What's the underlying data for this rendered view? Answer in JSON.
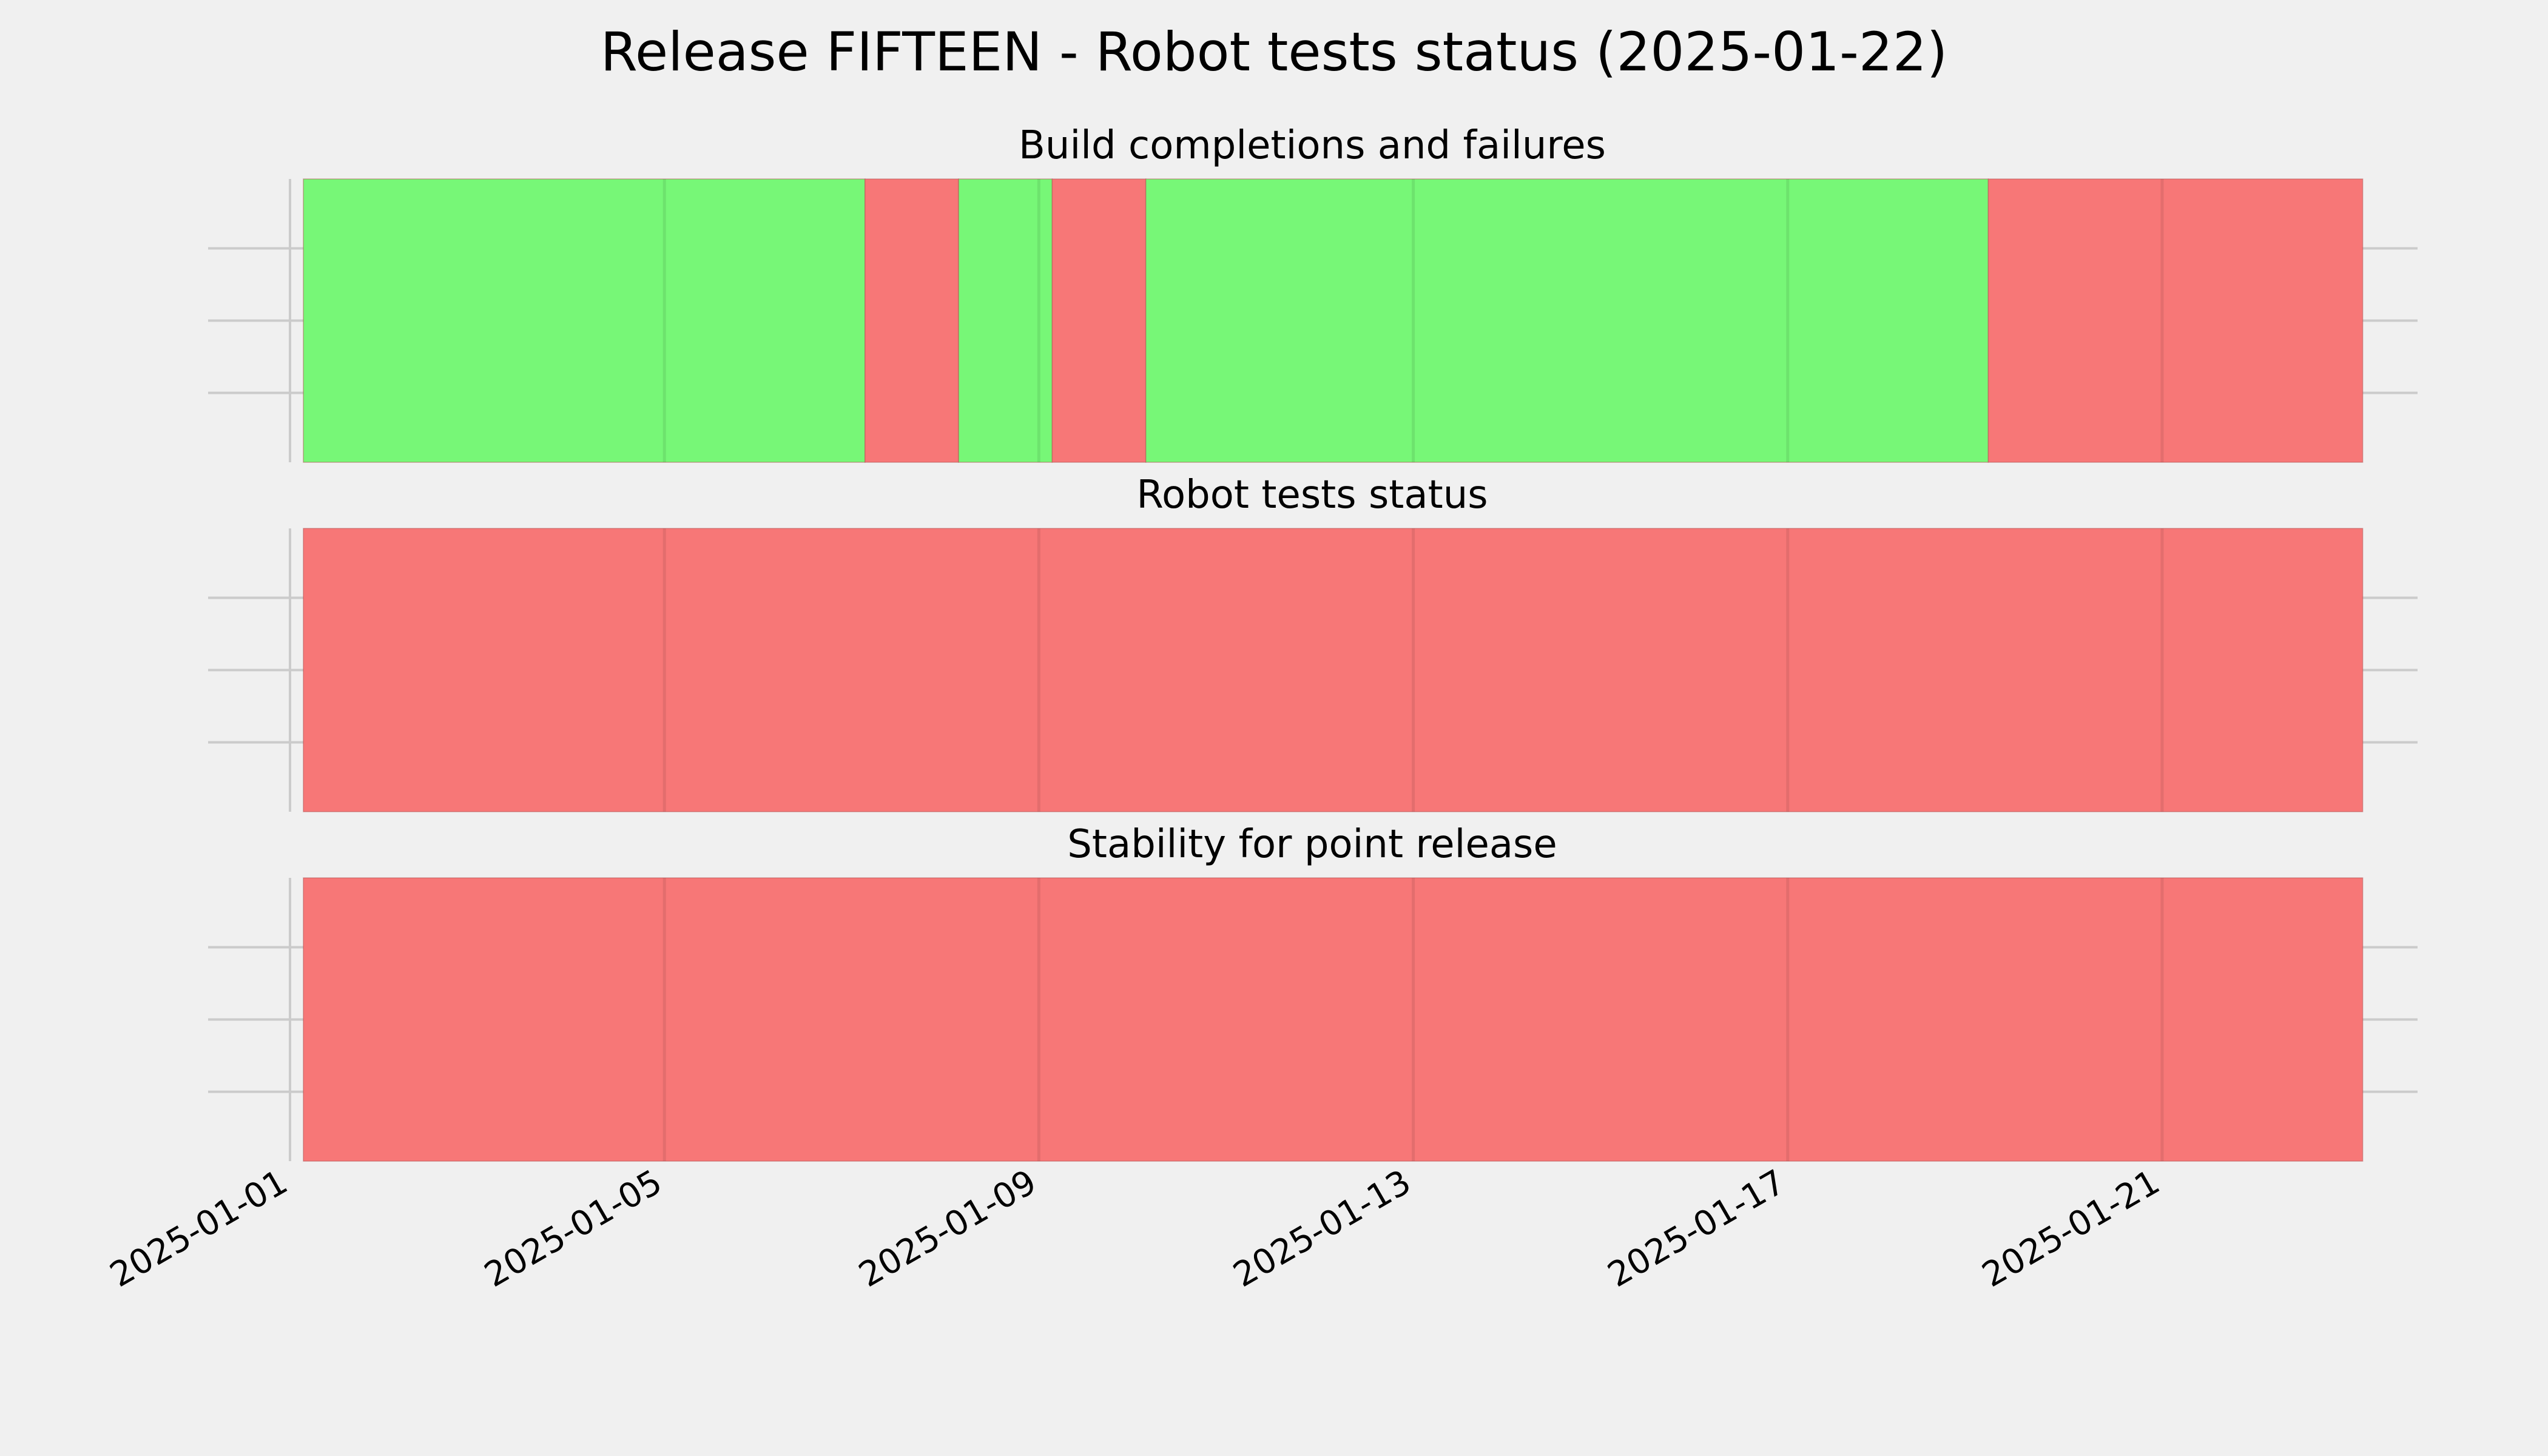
{
  "chart_data": {
    "type": "bar",
    "title": "Release FIFTEEN - Robot tests status (2025-01-22)",
    "x_axis": {
      "type": "date",
      "range": [
        "2025-01-01",
        "2025-01-23"
      ],
      "tick_labels": [
        "2025-01-01",
        "2025-01-05",
        "2025-01-09",
        "2025-01-13",
        "2025-01-17",
        "2025-01-21"
      ]
    },
    "colors": {
      "success": "#77f777",
      "failure": "#f77777",
      "background": "#f0f0f0",
      "grid": "#cbcbcb"
    },
    "grid": true,
    "panels": [
      {
        "title": "Build completions and failures",
        "segments": [
          {
            "start": "2025-01-01",
            "end": "2025-01-07",
            "status": "success"
          },
          {
            "start": "2025-01-07",
            "end": "2025-01-08",
            "status": "failure"
          },
          {
            "start": "2025-01-08",
            "end": "2025-01-09",
            "status": "success"
          },
          {
            "start": "2025-01-09",
            "end": "2025-01-10",
            "status": "failure"
          },
          {
            "start": "2025-01-10",
            "end": "2025-01-19",
            "status": "success"
          },
          {
            "start": "2025-01-19",
            "end": "2025-01-23",
            "status": "failure"
          }
        ]
      },
      {
        "title": "Robot tests status",
        "segments": [
          {
            "start": "2025-01-01",
            "end": "2025-01-23",
            "status": "failure"
          }
        ]
      },
      {
        "title": "Stability for point release",
        "segments": [
          {
            "start": "2025-01-01",
            "end": "2025-01-23",
            "status": "failure"
          }
        ]
      }
    ]
  }
}
